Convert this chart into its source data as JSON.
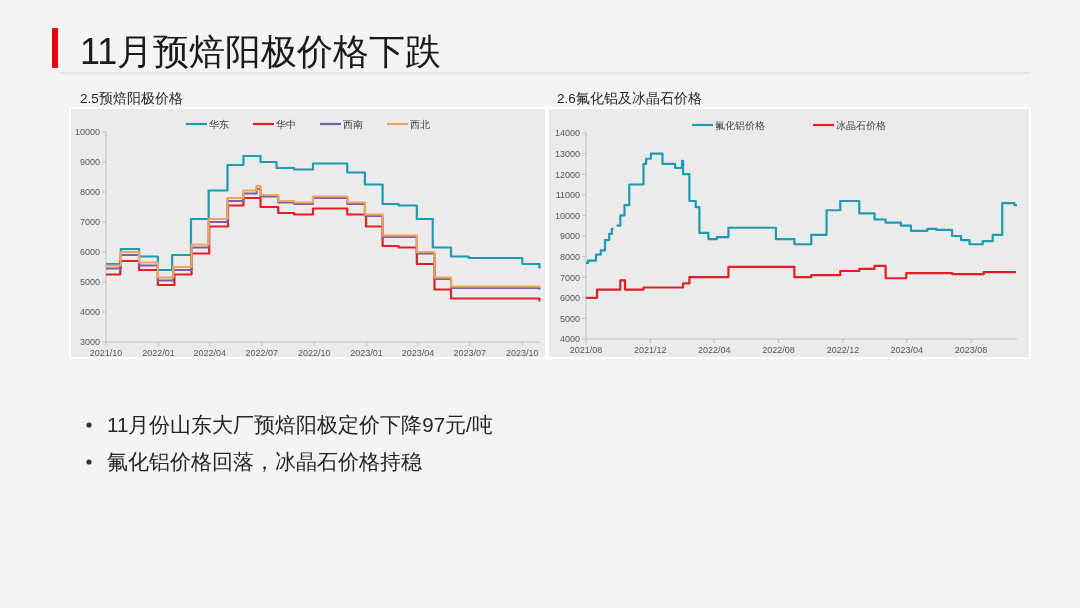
{
  "chart_data": [
    {
      "type": "other",
      "title": "11月预焙阳极价格下跌"
    },
    {
      "type": "step",
      "title": "2.5预焙阳极价格",
      "legend": "top",
      "xlim": [
        "2021-10-01",
        "2023-11-01"
      ],
      "xticks": [
        {
          "value": "2021-10-01",
          "label": "2021/10"
        },
        {
          "value": "2022-01-01",
          "label": "2022/01"
        },
        {
          "value": "2022-04-01",
          "label": "2022/04"
        },
        {
          "value": "2022-07-01",
          "label": "2022/07"
        },
        {
          "value": "2022-10-01",
          "label": "2022/10"
        },
        {
          "value": "2023-01-01",
          "label": "2023/01"
        },
        {
          "value": "2023-04-01",
          "label": "2023/04"
        },
        {
          "value": "2023-07-01",
          "label": "2023/07"
        },
        {
          "value": "2023-10-01",
          "label": "2023/10"
        }
      ],
      "ylim": [
        3000,
        10000
      ],
      "yticks": [
        3000,
        4000,
        5000,
        6000,
        7000,
        8000,
        9000,
        10000
      ],
      "series": [
        {
          "name": "华东",
          "color": "#1f9bb0",
          "x": [
            "2021-10-01",
            "2021-10-27",
            "2021-11-28",
            "2021-12-31",
            "2022-01-25",
            "2022-02-27",
            "2022-03-30",
            "2022-05-02",
            "2022-05-30",
            "2022-06-29",
            "2022-07-27",
            "2022-08-27",
            "2022-09-29",
            "2022-11-28",
            "2022-12-29",
            "2023-01-29",
            "2023-02-26",
            "2023-03-30",
            "2023-04-27",
            "2023-05-29",
            "2023-06-29",
            "2023-10-01",
            "2023-10-31"
          ],
          "values": [
            5600,
            6100,
            5850,
            5400,
            5900,
            7100,
            8050,
            8900,
            9200,
            9000,
            8800,
            8750,
            8950,
            8650,
            8250,
            7600,
            7550,
            7100,
            6150,
            5850,
            5800,
            5600,
            5450
          ]
        },
        {
          "name": "华中",
          "color": "#e31e24",
          "x": [
            "2021-10-01",
            "2021-10-26",
            "2021-11-28",
            "2021-12-31",
            "2022-01-29",
            "2022-02-28",
            "2022-03-31",
            "2022-05-03",
            "2022-05-30",
            "2022-06-29",
            "2022-07-30",
            "2022-08-27",
            "2022-09-29",
            "2022-11-28",
            "2022-12-31",
            "2023-01-29",
            "2023-02-26",
            "2023-03-30",
            "2023-04-30",
            "2023-05-29",
            "2023-10-25",
            "2023-10-31"
          ],
          "values": [
            5250,
            5700,
            5400,
            4900,
            5250,
            5950,
            6850,
            7550,
            7800,
            7500,
            7300,
            7250,
            7450,
            7250,
            6850,
            6200,
            6150,
            5600,
            4750,
            4450,
            4450,
            4350
          ]
        },
        {
          "name": "西南",
          "color": "#7d5ea6",
          "x": [
            "2021-10-01",
            "2021-10-27",
            "2021-11-28",
            "2021-12-31",
            "2022-01-27",
            "2022-02-28",
            "2022-03-30",
            "2022-05-02",
            "2022-05-30",
            "2022-06-22",
            "2022-06-29",
            "2022-07-30",
            "2022-08-27",
            "2022-09-29",
            "2022-11-28",
            "2022-12-29",
            "2023-01-29",
            "2023-03-30",
            "2023-04-30",
            "2023-05-29",
            "2023-10-31"
          ],
          "values": [
            5450,
            5900,
            5550,
            5050,
            5400,
            6150,
            7000,
            7700,
            7950,
            8100,
            7850,
            7650,
            7600,
            7800,
            7600,
            7200,
            6500,
            5950,
            5100,
            4800,
            4750
          ]
        },
        {
          "name": "西北",
          "color": "#f0a35a",
          "x": [
            "2021-10-01",
            "2021-10-27",
            "2021-11-28",
            "2021-12-31",
            "2022-01-27",
            "2022-02-28",
            "2022-03-30",
            "2022-05-02",
            "2022-05-30",
            "2022-06-22",
            "2022-06-29",
            "2022-07-30",
            "2022-08-27",
            "2022-09-29",
            "2022-11-28",
            "2022-12-29",
            "2023-01-29",
            "2023-03-30",
            "2023-04-30",
            "2023-05-29",
            "2023-10-31"
          ],
          "values": [
            5550,
            6000,
            5650,
            5150,
            5500,
            6250,
            7100,
            7800,
            8050,
            8200,
            7900,
            7700,
            7650,
            7850,
            7650,
            7250,
            6550,
            6000,
            5150,
            4850,
            4800
          ]
        }
      ]
    },
    {
      "type": "step",
      "title": "2.6氟化铝及冰晶石价格",
      "legend": "top",
      "xlim": [
        "2021-08-01",
        "2023-10-27"
      ],
      "xticks": [
        {
          "value": "2021-08-01",
          "label": "2021/08"
        },
        {
          "value": "2021-12-01",
          "label": "2021/12"
        },
        {
          "value": "2022-04-01",
          "label": "2022/04"
        },
        {
          "value": "2022-08-01",
          "label": "2022/08"
        },
        {
          "value": "2022-12-01",
          "label": "2022/12"
        },
        {
          "value": "2023-04-01",
          "label": "2023/04"
        },
        {
          "value": "2023-08-01",
          "label": "2023/08"
        }
      ],
      "ylim": [
        4000,
        14000
      ],
      "yticks": [
        4000,
        5000,
        6000,
        7000,
        8000,
        9000,
        10000,
        11000,
        12000,
        13000,
        14000
      ],
      "series": [
        {
          "name": "氟化铝价格",
          "color": "#1f9bb0",
          "x": [
            "2021-08-01",
            "2021-08-05",
            "2021-08-20",
            "2021-08-29",
            "2021-09-06",
            "2021-09-14",
            "2021-09-19",
            "2021-09-22",
            "2021-09-28",
            "2021-10-05",
            "2021-10-13",
            "2021-10-22",
            "2021-11-18",
            "2021-11-23",
            "2021-12-02",
            "2021-12-24",
            "2022-01-17",
            "2022-01-30",
            "2022-02-01",
            "2022-02-13",
            "2022-02-25",
            "2022-03-04",
            "2022-03-21",
            "2022-04-06",
            "2022-04-28",
            "2022-07-27",
            "2022-08-31",
            "2022-10-02",
            "2022-10-31",
            "2022-11-26",
            "2023-01-01",
            "2023-01-30",
            "2023-02-20",
            "2023-03-21",
            "2023-04-09",
            "2023-05-10",
            "2023-05-27",
            "2023-06-26",
            "2023-07-13",
            "2023-07-29",
            "2023-08-23",
            "2023-09-11",
            "2023-09-29",
            "2023-10-22",
            "2023-10-25"
          ],
          "values": [
            7700,
            7800,
            8100,
            8300,
            8800,
            9100,
            9350,
            null,
            9500,
            10000,
            10500,
            11500,
            12500,
            12750,
            13000,
            12500,
            12300,
            12650,
            12000,
            10700,
            10400,
            9150,
            8850,
            8950,
            9400,
            8850,
            8600,
            9050,
            10250,
            10700,
            10100,
            9800,
            9650,
            9500,
            9250,
            9350,
            9300,
            9000,
            8800,
            8600,
            8750,
            9050,
            10600,
            10500,
            10450
          ]
        },
        {
          "name": "冰晶石价格",
          "color": "#e31e24",
          "x": [
            "2021-08-01",
            "2021-08-22",
            "2021-10-05",
            "2021-10-14",
            "2021-11-18",
            "2022-02-01",
            "2022-02-13",
            "2022-04-28",
            "2022-08-31",
            "2022-10-02",
            "2022-11-26",
            "2023-01-01",
            "2023-01-30",
            "2023-02-20",
            "2023-03-31",
            "2023-06-26",
            "2023-08-25",
            "2023-10-25"
          ],
          "values": [
            6000,
            6400,
            6850,
            6400,
            6500,
            6700,
            7000,
            7500,
            7000,
            7100,
            7300,
            7400,
            7550,
            6950,
            7200,
            7150,
            7250,
            7250
          ]
        }
      ]
    },
    {
      "type": "other",
      "annotations": [
        "11月份山东大厂预焙阳极定价下降97元/吨",
        "氟化铝价格回落，冰晶石价格持稳"
      ]
    }
  ]
}
